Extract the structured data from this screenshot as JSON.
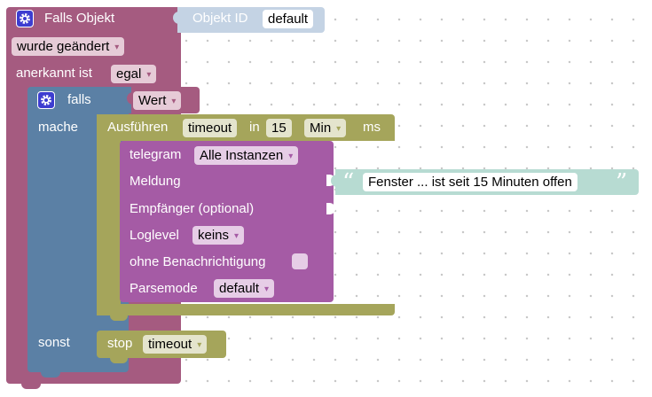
{
  "event_block": {
    "title": "Falls Objekt",
    "trigger_value": "wurde geändert",
    "ack_label": "anerkannt ist",
    "ack_value": "egal"
  },
  "object_id_block": {
    "label": "Objekt ID",
    "value": "default"
  },
  "if_block": {
    "if_label": "falls",
    "do_label": "mache",
    "else_label": "sonst"
  },
  "value_block": {
    "value": "Wert"
  },
  "timeout_block": {
    "label_run": "Ausführen",
    "name": "timeout",
    "label_in": "in",
    "amount": "15",
    "unit": "Min",
    "suffix": "ms"
  },
  "telegram_block": {
    "label": "telegram",
    "instance": "Alle Instanzen",
    "message_label": "Meldung",
    "recipient_label": "Empfänger (optional)",
    "loglevel_label": "Loglevel",
    "loglevel_value": "keins",
    "silent_label": "ohne Benachrichtigung",
    "parsemode_label": "Parsemode",
    "parsemode_value": "default"
  },
  "text_block": {
    "text": "Fenster ... ist seit 15 Minuten offen"
  },
  "stop_block": {
    "label": "stop",
    "name": "timeout"
  },
  "colors": {
    "event": "#a55b80",
    "logic": "#5b80a5",
    "value": "#a55b80",
    "timeout": "#a5a55b",
    "telegram": "#a55ba5",
    "text": "#b7dbd2",
    "object_id": "#c4d3e4"
  }
}
